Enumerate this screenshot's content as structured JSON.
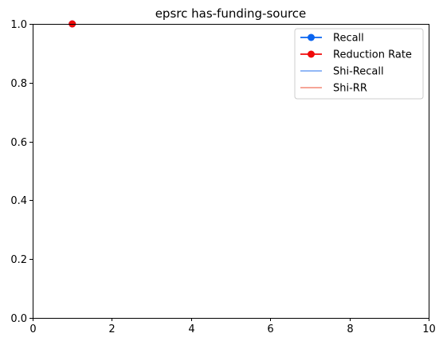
{
  "chart_data": {
    "type": "line",
    "title": "epsrc has-funding-source",
    "xlabel": "",
    "ylabel": "",
    "xlim": [
      0,
      10
    ],
    "ylim": [
      0,
      1
    ],
    "xticks": [
      0,
      2,
      4,
      6,
      8,
      10
    ],
    "yticks": [
      0.0,
      0.2,
      0.4,
      0.6,
      0.8,
      1.0
    ],
    "xtick_labels": [
      "0",
      "2",
      "4",
      "6",
      "8",
      "10"
    ],
    "ytick_labels": [
      "0.0",
      "0.2",
      "0.4",
      "0.6",
      "0.8",
      "1.0"
    ],
    "grid": false,
    "legend_position": "top-right",
    "series": [
      {
        "name": "Recall",
        "color": "#0a64f0",
        "marker": "circle",
        "style": "line-marker",
        "x": [
          1
        ],
        "y": [
          1.0
        ]
      },
      {
        "name": "Reduction Rate",
        "color": "#f00a0a",
        "marker": "circle",
        "style": "line-marker",
        "x": [
          1
        ],
        "y": [
          1.0
        ]
      },
      {
        "name": "Shi-Recall",
        "color": "#82aef5",
        "marker": "none",
        "style": "line",
        "x": [],
        "y": []
      },
      {
        "name": "Shi-RR",
        "color": "#f59a8a",
        "marker": "none",
        "style": "line",
        "x": [],
        "y": []
      }
    ]
  }
}
